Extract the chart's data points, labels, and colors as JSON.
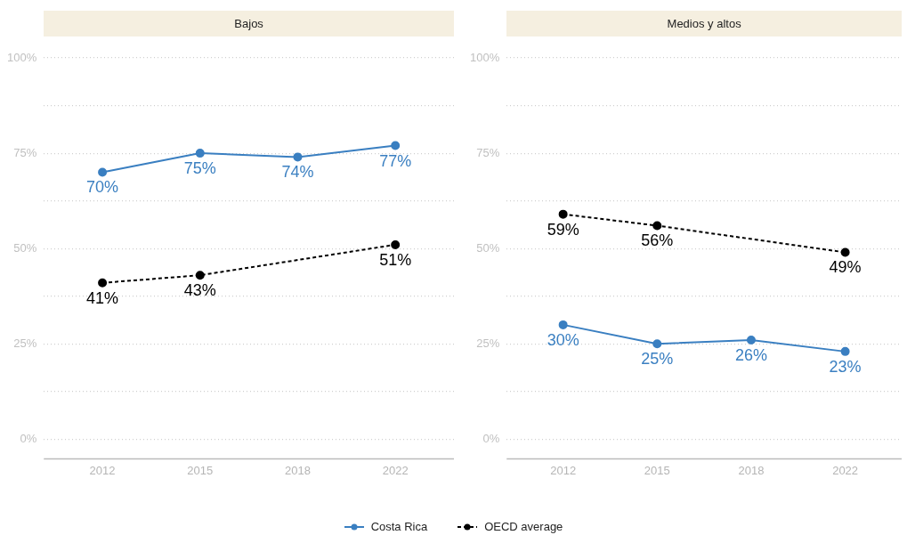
{
  "chart_data": [
    {
      "type": "line",
      "title": "Bajos",
      "categories": [
        "2012",
        "2015",
        "2018",
        "2022"
      ],
      "ylim": [
        0,
        100
      ],
      "yticks": [
        {
          "value": 0,
          "label": "0%"
        },
        {
          "value": 12.5,
          "label": null
        },
        {
          "value": 25,
          "label": "25%"
        },
        {
          "value": 37.5,
          "label": null
        },
        {
          "value": 50,
          "label": "50%"
        },
        {
          "value": 62.5,
          "label": null
        },
        {
          "value": 75,
          "label": "75%"
        },
        {
          "value": 87.5,
          "label": null
        },
        {
          "value": 100,
          "label": "100%"
        }
      ],
      "grid": "y",
      "legend": "bottom",
      "marker": "circle",
      "series": [
        {
          "name": "Costa Rica",
          "color": "#3a7fc1",
          "line_style": "solid",
          "values": [
            70,
            75,
            74,
            77
          ],
          "value_labels": [
            "70%",
            "75%",
            "74%",
            "77%"
          ]
        },
        {
          "name": "OECD average",
          "color": "#000000",
          "line_style": "dashed",
          "values": [
            41,
            43,
            null,
            51
          ],
          "value_labels": [
            "41%",
            "43%",
            null,
            "51%"
          ]
        }
      ]
    },
    {
      "type": "line",
      "title": "Medios y altos",
      "categories": [
        "2012",
        "2015",
        "2018",
        "2022"
      ],
      "ylim": [
        0,
        100
      ],
      "yticks": [
        {
          "value": 0,
          "label": "0%"
        },
        {
          "value": 12.5,
          "label": null
        },
        {
          "value": 25,
          "label": "25%"
        },
        {
          "value": 37.5,
          "label": null
        },
        {
          "value": 50,
          "label": "50%"
        },
        {
          "value": 62.5,
          "label": null
        },
        {
          "value": 75,
          "label": "75%"
        },
        {
          "value": 87.5,
          "label": null
        },
        {
          "value": 100,
          "label": "100%"
        }
      ],
      "grid": "y",
      "marker": "circle",
      "series": [
        {
          "color": "#3a7fc1",
          "line_style": "solid",
          "values": [
            30,
            25,
            26,
            23
          ],
          "value_labels": [
            "30%",
            "25%",
            "26%",
            "23%"
          ]
        },
        {
          "color": "#000000",
          "line_style": "dashed",
          "values": [
            59,
            56,
            null,
            49
          ],
          "value_labels": [
            "59%",
            "56%",
            null,
            "49%"
          ]
        }
      ]
    }
  ]
}
